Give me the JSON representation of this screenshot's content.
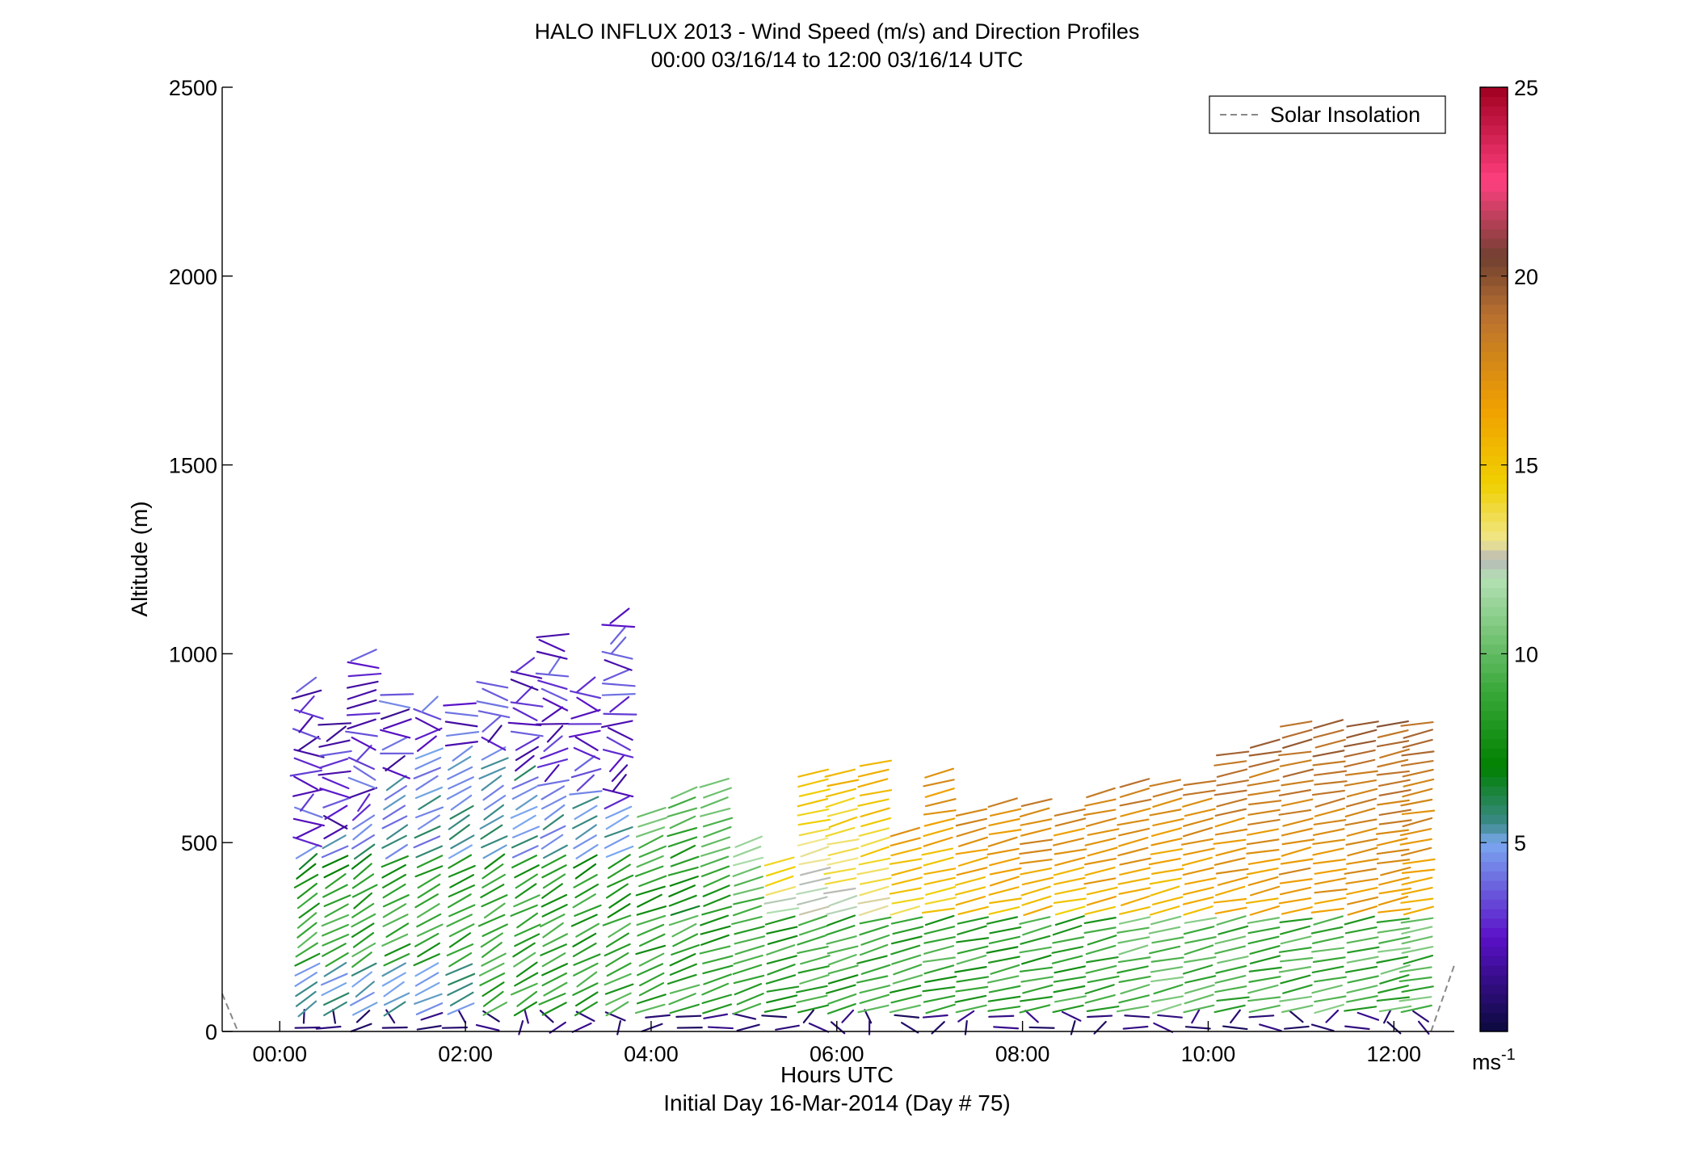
{
  "chart_data": {
    "type": "wind-barb-profile",
    "title": "HALO INFLUX 2013 - Wind Speed (m/s) and Direction Profiles",
    "subtitle": "00:00 03/16/14 to 12:00 03/16/14  UTC",
    "xlabel": "Hours UTC",
    "xlabel2": "Initial Day 16-Mar-2014 (Day # 75)",
    "ylabel": "Altitude (m)",
    "xlim": [
      -0.62,
      12.65
    ],
    "ylim": [
      0,
      2500
    ],
    "x_ticks": [
      {
        "value": 0,
        "label": "00:00"
      },
      {
        "value": 2,
        "label": "02:00"
      },
      {
        "value": 4,
        "label": "04:00"
      },
      {
        "value": 6,
        "label": "06:00"
      },
      {
        "value": 8,
        "label": "08:00"
      },
      {
        "value": 10,
        "label": "10:00"
      },
      {
        "value": 12,
        "label": "12:00"
      }
    ],
    "y_ticks": [
      0,
      500,
      1000,
      1500,
      2000,
      2500
    ],
    "legend": {
      "label": "Solar Insolation",
      "placement": "top-right",
      "style": "dashed",
      "color": "#888888"
    },
    "colorbar": {
      "min": 0,
      "max": 25,
      "ticks": [
        5,
        10,
        15,
        20,
        25
      ],
      "units_label": "ms",
      "units_exp": "-1",
      "colormap": [
        {
          "v": 0,
          "c": "#0a0a3c"
        },
        {
          "v": 2.5,
          "c": "#5a10c8"
        },
        {
          "v": 5,
          "c": "#7aa8f0"
        },
        {
          "v": 5.5,
          "c": "#3c8a8a"
        },
        {
          "v": 7,
          "c": "#008000"
        },
        {
          "v": 9,
          "c": "#38a838"
        },
        {
          "v": 12,
          "c": "#b4e0b4"
        },
        {
          "v": 12.5,
          "c": "#b8b8b8"
        },
        {
          "v": 13,
          "c": "#f0e68c"
        },
        {
          "v": 14.5,
          "c": "#f0d000"
        },
        {
          "v": 16.5,
          "c": "#f0a000"
        },
        {
          "v": 19,
          "c": "#b87030"
        },
        {
          "v": 20.5,
          "c": "#704030"
        },
        {
          "v": 22.5,
          "c": "#ff4080"
        },
        {
          "v": 25,
          "c": "#a00020"
        }
      ]
    },
    "solar_insolation": [
      {
        "x": [
          -0.62,
          -0.45
        ],
        "y": [
          100,
          0
        ]
      },
      {
        "x": [
          12.4,
          12.65
        ],
        "y": [
          0,
          175
        ]
      }
    ],
    "profiles": [
      {
        "t": 0.3,
        "top": 930,
        "low_speed": 4.0,
        "low_top": 500,
        "dir": 220
      },
      {
        "t": 0.6,
        "top": 820,
        "low_speed": 4.5,
        "low_top": 520,
        "dir": 225
      },
      {
        "t": 0.9,
        "top": 1010,
        "low_speed": 4.0,
        "low_top": 570,
        "dir": 220
      },
      {
        "t": 1.25,
        "top": 900,
        "low_speed": 4.5,
        "low_top": 680,
        "dir": 225
      },
      {
        "t": 1.6,
        "top": 870,
        "low_speed": 4.5,
        "low_top": 740,
        "dir": 228
      },
      {
        "t": 1.95,
        "top": 880,
        "low_speed": 4.0,
        "low_top": 740,
        "dir": 225
      },
      {
        "t": 2.3,
        "top": 930,
        "low_speed": 4.0,
        "low_top": 740,
        "dir": 225
      },
      {
        "t": 2.65,
        "top": 970,
        "low_speed": 4.0,
        "low_top": 700,
        "dir": 225
      },
      {
        "t": 2.95,
        "top": 1050,
        "low_speed": 4.0,
        "low_top": 620,
        "dir": 225
      },
      {
        "t": 3.3,
        "top": 930,
        "low_speed": 4.0,
        "low_top": 620,
        "dir": 225
      },
      {
        "t": 3.65,
        "top": 1100,
        "low_speed": 10.0,
        "low_top": 580,
        "dir": 228
      },
      {
        "t": 4.0,
        "top": 600,
        "low_speed": 10.5,
        "low_top": 600,
        "dir": 235
      },
      {
        "t": 4.35,
        "top": 640,
        "low_speed": 10.0,
        "low_top": 640,
        "dir": 235
      },
      {
        "t": 4.7,
        "top": 660,
        "low_speed": 11.0,
        "low_top": 660,
        "dir": 238
      },
      {
        "t": 5.05,
        "top": 520,
        "low_speed": 12.0,
        "low_top": 520,
        "dir": 240
      },
      {
        "t": 5.4,
        "top": 470,
        "low_speed": 15.0,
        "low_top": 470,
        "dir": 245
      },
      {
        "t": 5.75,
        "top": 690,
        "low_speed": 15.0,
        "low_top": 690,
        "dir": 245
      },
      {
        "t": 6.05,
        "top": 700,
        "low_speed": 15.5,
        "low_top": 700,
        "dir": 245
      },
      {
        "t": 6.4,
        "top": 720,
        "low_speed": 16.0,
        "low_top": 720,
        "dir": 245
      },
      {
        "t": 6.75,
        "top": 550,
        "low_speed": 17.0,
        "low_top": 550,
        "dir": 245
      },
      {
        "t": 7.1,
        "top": 690,
        "low_speed": 17.5,
        "low_top": 690,
        "dir": 248
      },
      {
        "t": 7.45,
        "top": 600,
        "low_speed": 18.0,
        "low_top": 600,
        "dir": 248
      },
      {
        "t": 7.8,
        "top": 610,
        "low_speed": 18.0,
        "low_top": 610,
        "dir": 248
      },
      {
        "t": 8.15,
        "top": 620,
        "low_speed": 18.5,
        "low_top": 620,
        "dir": 248
      },
      {
        "t": 8.5,
        "top": 600,
        "low_speed": 18.0,
        "low_top": 600,
        "dir": 248
      },
      {
        "t": 8.85,
        "top": 640,
        "low_speed": 18.5,
        "low_top": 640,
        "dir": 248
      },
      {
        "t": 9.2,
        "top": 670,
        "low_speed": 18.5,
        "low_top": 670,
        "dir": 248
      },
      {
        "t": 9.55,
        "top": 680,
        "low_speed": 18.0,
        "low_top": 680,
        "dir": 248
      },
      {
        "t": 9.9,
        "top": 660,
        "low_speed": 18.5,
        "low_top": 660,
        "dir": 248
      },
      {
        "t": 10.25,
        "top": 750,
        "low_speed": 19.0,
        "low_top": 750,
        "dir": 250
      },
      {
        "t": 10.6,
        "top": 770,
        "low_speed": 19.0,
        "low_top": 770,
        "dir": 250
      },
      {
        "t": 10.95,
        "top": 820,
        "low_speed": 19.5,
        "low_top": 820,
        "dir": 250
      },
      {
        "t": 11.3,
        "top": 820,
        "low_speed": 19.5,
        "low_top": 820,
        "dir": 250
      },
      {
        "t": 11.65,
        "top": 820,
        "low_speed": 19.5,
        "low_top": 820,
        "dir": 250
      },
      {
        "t": 12.0,
        "top": 820,
        "low_speed": 19.5,
        "low_top": 820,
        "dir": 250
      },
      {
        "t": 12.25,
        "top": 820,
        "low_speed": 19.0,
        "low_top": 820,
        "dir": 250
      }
    ]
  }
}
